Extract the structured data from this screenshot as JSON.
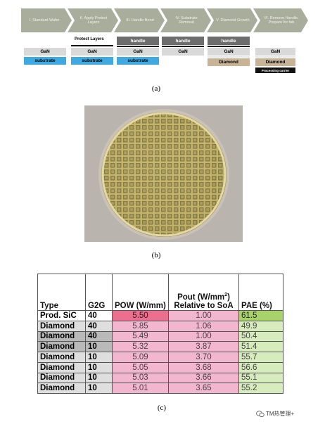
{
  "figure_a": {
    "steps": [
      "I. Standard Wafer",
      "II. Apply Protect Layers",
      "III. Handle Bond",
      "IV. Substrate Removal",
      "V. Diamond Growth",
      "VI. Remove Handle, Prepare for fab"
    ],
    "protect_label": "Protect Layers",
    "gan": "GaN",
    "substrate": "substrate",
    "handle": "handle",
    "diamond": "Diamond",
    "carrier": "Processing carrier",
    "caption": "(a)"
  },
  "figure_b": {
    "caption": "(b)"
  },
  "table": {
    "headers": {
      "type": "Type",
      "g2g": "G2G",
      "pow": "POW (W/mm)",
      "pout_line1": "Pout (W/mm",
      "pout_sup": "2",
      "pout_line1_end": ")",
      "pout_line2": "Relative to SoA",
      "pae": "PAE (%)"
    },
    "rows": [
      {
        "type": "Prod. SiC",
        "g2g": "40",
        "pow": "5.50",
        "pout": "1.00",
        "pae": "61.5"
      },
      {
        "type": "Diamond",
        "g2g": "40",
        "pow": "5.85",
        "pout": "1.06",
        "pae": "49.9"
      },
      {
        "type": "Diamond",
        "g2g": "40",
        "pow": "5.49",
        "pout": "1.00",
        "pae": "50.4"
      },
      {
        "type": "Diamond",
        "g2g": "10",
        "pow": "5.32",
        "pout": "3.87",
        "pae": "51.4"
      },
      {
        "type": "Diamond",
        "g2g": "10",
        "pow": "5.09",
        "pout": "3.70",
        "pae": "55.7"
      },
      {
        "type": "Diamond",
        "g2g": "10",
        "pow": "5.05",
        "pout": "3.68",
        "pae": "56.6"
      },
      {
        "type": "Diamond",
        "g2g": "10",
        "pow": "5.03",
        "pout": "3.66",
        "pae": "55.1"
      },
      {
        "type": "Diamond",
        "g2g": "10",
        "pow": "5.01",
        "pout": "3.65",
        "pae": "55.2"
      }
    ],
    "caption": "(c)"
  },
  "watermark": "TM热管理+"
}
